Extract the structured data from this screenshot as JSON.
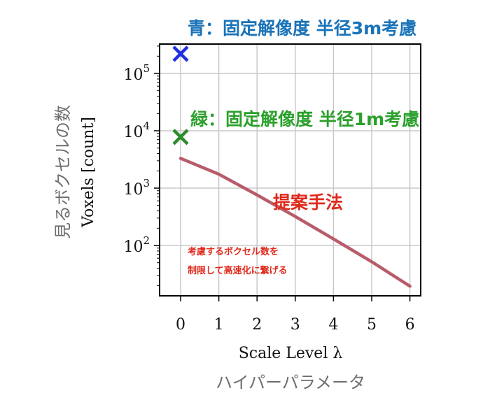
{
  "chart_data": {
    "type": "line",
    "xlabel": "Scale Level λ",
    "xlabel_sub": "ハイパーパラメータ",
    "ylabel": "Voxels [count]",
    "ylabel_sub": "見るボクセルの数",
    "x_ticks": [
      "0",
      "1",
      "2",
      "3",
      "4",
      "5",
      "6"
    ],
    "y_scale": "log",
    "y_ticks": [
      {
        "base": "10",
        "exp": "2",
        "value": 100
      },
      {
        "base": "10",
        "exp": "3",
        "value": 1000
      },
      {
        "base": "10",
        "exp": "4",
        "value": 10000
      },
      {
        "base": "10",
        "exp": "5",
        "value": 100000
      }
    ],
    "xlim": [
      -0.55,
      6.3
    ],
    "ylim": [
      8.5,
      400000
    ],
    "grid": true,
    "series": [
      {
        "name": "提案手法",
        "color": "#b85c6a",
        "x": [
          0,
          1,
          2,
          3,
          4,
          5,
          6
        ],
        "y": [
          3300,
          1750,
          760,
          320,
          130,
          52,
          19.5
        ]
      }
    ],
    "markers": [
      {
        "x": 0,
        "y": 220000,
        "symbol": "x",
        "color": "#1f2fe0"
      },
      {
        "x": 0,
        "y": 7800,
        "symbol": "x",
        "color": "#2e8b2e"
      }
    ],
    "annotations": {
      "blue": {
        "text": "青：固定解像度 半径3m考慮",
        "color": "#1a73b8"
      },
      "green": {
        "text": "緑：固定解像度 半径1m考慮",
        "color": "#2ca02c"
      },
      "red": {
        "text": "提案手法",
        "color": "#e02a1d"
      },
      "note_line1": "考慮するボクセル数を",
      "note_line2": "制限して高速化に繋げる",
      "note_color": "#e02a1d"
    }
  }
}
